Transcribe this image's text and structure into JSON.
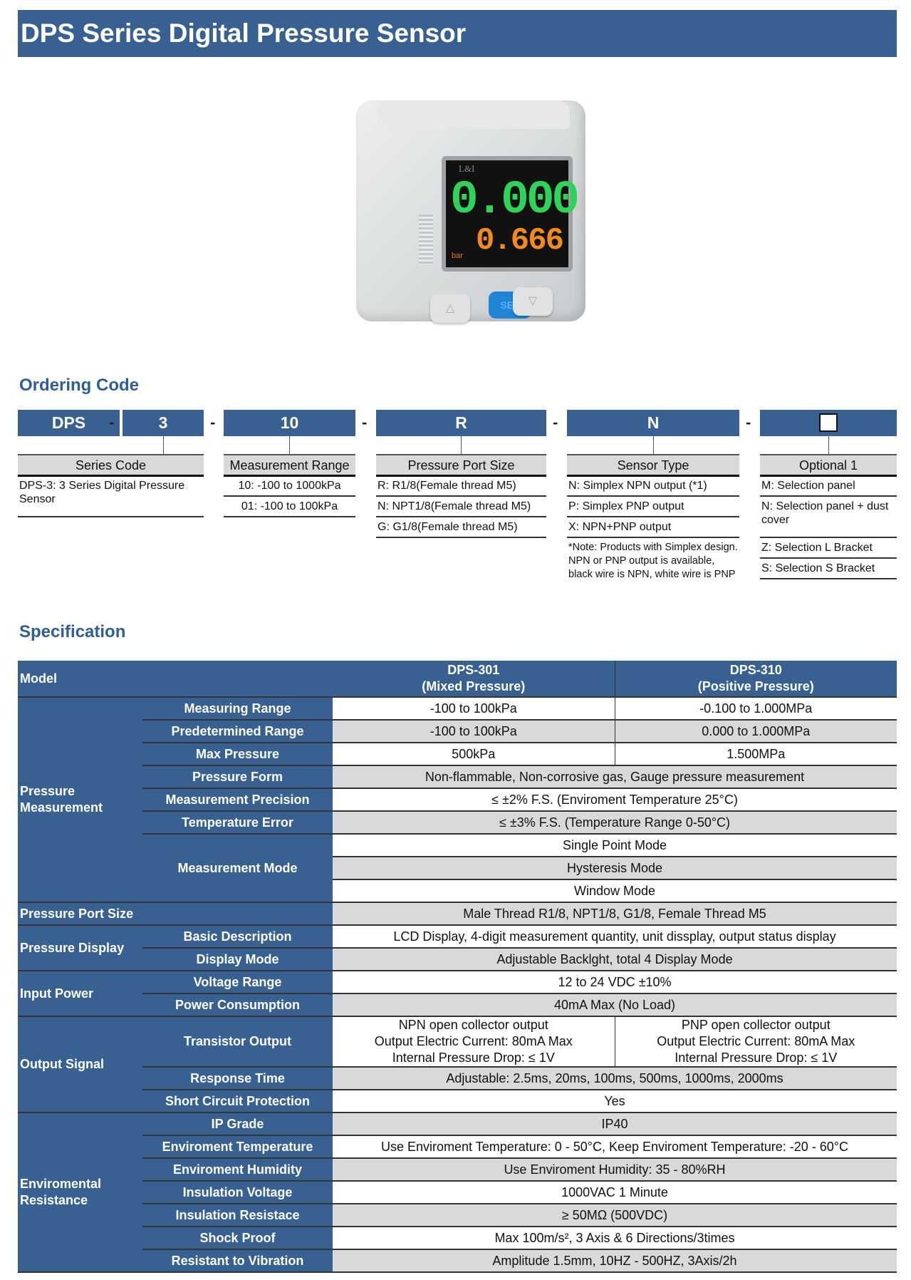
{
  "title": "DPS Series Digital Pressure Sensor",
  "colors": {
    "brand_blue": "#386192",
    "heading_blue": "#2f5e96",
    "row_grey": "#d9d9d9"
  },
  "device": {
    "brand": "L&I",
    "main_display": "0.000",
    "sub_display": "0.666",
    "unit": "bar",
    "set_button": "SET",
    "up_icon": "triangle-up-icon",
    "down_icon": "triangle-down-icon"
  },
  "ordering": {
    "heading": "Ordering Code",
    "separator": "-",
    "codes": [
      "DPS",
      "3",
      "10",
      "R",
      "N",
      "□"
    ],
    "columns": [
      {
        "header": "Series Code",
        "items": [
          "DPS-3: 3 Series Digital Pressure Sensor"
        ]
      },
      {
        "header": "Measurement Range",
        "items": [
          "10: -100 to 1000kPa",
          "01: -100 to 100kPa"
        ]
      },
      {
        "header": "Pressure Port Size",
        "items": [
          "R: R1/8(Female thread M5)",
          "N: NPT1/8(Female thread M5)",
          "G: G1/8(Female thread M5)"
        ]
      },
      {
        "header": "Sensor Type",
        "items": [
          "N: Simplex NPN output (*1)",
          "P: Simplex PNP output",
          "X: NPN+PNP output"
        ],
        "note": "*Note: Products with Simplex design. NPN or PNP output is available, black wire is NPN, white wire is PNP"
      },
      {
        "header": "Optional 1",
        "items": [
          "M: Selection panel",
          "N: Selection panel + dust cover",
          "Z: Selection L Bracket",
          "S: Selection S Bracket"
        ]
      }
    ]
  },
  "specification": {
    "heading": "Specification",
    "model_label": "Model",
    "models": [
      {
        "name": "DPS-301",
        "type": "(Mixed Pressure)"
      },
      {
        "name": "DPS-310",
        "type": "(Positive Pressure)"
      }
    ],
    "groups": [
      {
        "label": "Pressure Measurement",
        "rows": [
          {
            "label": "Measuring Range",
            "values": [
              "-100 to 100kPa",
              "-0.100 to 1.000MPa"
            ]
          },
          {
            "label": "Predetermined Range",
            "values": [
              "-100 to 100kPa",
              "0.000 to 1.000MPa"
            ]
          },
          {
            "label": "Max Pressure",
            "values": [
              "500kPa",
              "1.500MPa"
            ]
          },
          {
            "label": "Pressure Form",
            "values": [
              "Non-flammable, Non-corrosive gas, Gauge pressure measurement"
            ]
          },
          {
            "label": "Measurement Precision",
            "values": [
              "≤ ±2% F.S. (Enviroment Temperature 25°C)"
            ]
          },
          {
            "label": "Temperature Error",
            "values": [
              "≤ ±3% F.S. (Temperature Range 0-50°C)"
            ]
          },
          {
            "label": "Measurement Mode",
            "multi": [
              "Single Point Mode",
              "Hysteresis Mode",
              "Window Mode"
            ]
          }
        ]
      },
      {
        "label": "Pressure Port Size",
        "single": true,
        "values": [
          "Male Thread R1/8, NPT1/8, G1/8, Female Thread M5"
        ]
      },
      {
        "label": "Pressure Display",
        "rows": [
          {
            "label": "Basic Description",
            "values": [
              "LCD Display, 4-digit measurement quantity, unit dissplay, output status display"
            ]
          },
          {
            "label": "Display Mode",
            "values": [
              "Adjustable Backlght, total 4 Display Mode"
            ]
          }
        ]
      },
      {
        "label": "Input Power",
        "rows": [
          {
            "label": "Voltage Range",
            "values": [
              "12 to 24 VDC ±10%"
            ]
          },
          {
            "label": "Power Consumption",
            "values": [
              "40mA Max (No Load)"
            ]
          }
        ]
      },
      {
        "label": "Output Signal",
        "rows": [
          {
            "label": "Transistor Output",
            "tall": true,
            "values": [
              [
                "NPN open collector output",
                "Output Electric Current: 80mA Max",
                "Internal Pressure Drop: ≤ 1V"
              ],
              [
                "PNP open collector output",
                "Output Electric Current: 80mA Max",
                "Internal Pressure Drop: ≤ 1V"
              ]
            ]
          },
          {
            "label": "Response Time",
            "values": [
              "Adjustable: 2.5ms, 20ms, 100ms, 500ms, 1000ms, 2000ms"
            ]
          },
          {
            "label": "Short Circuit Protection",
            "values": [
              "Yes"
            ]
          }
        ]
      },
      {
        "label": "Enviromental Resistance",
        "rows": [
          {
            "label": "IP Grade",
            "values": [
              "IP40"
            ]
          },
          {
            "label": "Enviroment Temperature",
            "values": [
              "Use Enviroment Temperature: 0 - 50°C, Keep Enviroment Temperature: -20 - 60°C"
            ]
          },
          {
            "label": "Enviroment Humidity",
            "values": [
              "Use Enviroment Humidity: 35 - 80%RH"
            ]
          },
          {
            "label": "Insulation Voltage",
            "values": [
              "1000VAC 1 Minute"
            ]
          },
          {
            "label": "Insulation Resistace",
            "values": [
              "≥ 50MΩ (500VDC)"
            ]
          },
          {
            "label": "Shock Proof",
            "values": [
              "Max 100m/s², 3 Axis & 6 Directions/3times"
            ]
          },
          {
            "label": "Resistant to Vibration",
            "values": [
              "Amplitude 1.5mm, 10HZ - 500HZ, 3Axis/2h"
            ]
          }
        ]
      }
    ]
  }
}
